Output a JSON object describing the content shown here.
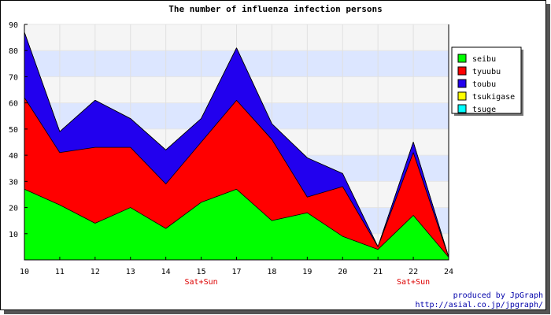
{
  "chart_data": {
    "type": "area",
    "stacked": true,
    "title": "The number of influenza infection persons",
    "xlabel": "",
    "ylabel": "",
    "x": [
      10,
      11,
      12,
      13,
      14,
      15,
      17,
      18,
      19,
      20,
      21,
      22,
      24
    ],
    "x_labels": [
      "10",
      "11",
      "12",
      "13",
      "14",
      "15",
      "17",
      "18",
      "19",
      "20",
      "21",
      "22",
      "24"
    ],
    "x_sublabels": [
      {
        "index": 5,
        "text": "Sat+Sun"
      },
      {
        "index": 11,
        "text": "Sat+Sun"
      }
    ],
    "ylim": [
      0,
      90
    ],
    "y_ticks": [
      10,
      20,
      30,
      40,
      50,
      60,
      70,
      80,
      90
    ],
    "grid": true,
    "legend_position": "top-right",
    "series": [
      {
        "name": "seibu",
        "color": "#00ff00",
        "values": [
          27,
          21,
          14,
          20,
          12,
          22,
          27,
          15,
          18,
          9,
          4,
          17,
          1
        ]
      },
      {
        "name": "tyuubu",
        "color": "#ff0000",
        "values": [
          35,
          20,
          29,
          23,
          17,
          23,
          34,
          31,
          6,
          19,
          1,
          24,
          0
        ]
      },
      {
        "name": "toubu",
        "color": "#2200ee",
        "values": [
          25,
          8,
          18,
          11,
          13,
          9,
          20,
          6,
          15,
          5,
          0,
          4,
          0
        ]
      },
      {
        "name": "tsukigase",
        "color": "#ffff00",
        "values": [
          0,
          0,
          0,
          0,
          0,
          0,
          0,
          0,
          0,
          0,
          0,
          0,
          0
        ]
      },
      {
        "name": "tsuge",
        "color": "#00ffff",
        "values": [
          0,
          0,
          0,
          0,
          0,
          0,
          0,
          0,
          0,
          0,
          0,
          0,
          0
        ]
      }
    ]
  },
  "footer": {
    "line1": "produced by JpGraph",
    "line2": "http://asial.co.jp/jpgraph/"
  }
}
